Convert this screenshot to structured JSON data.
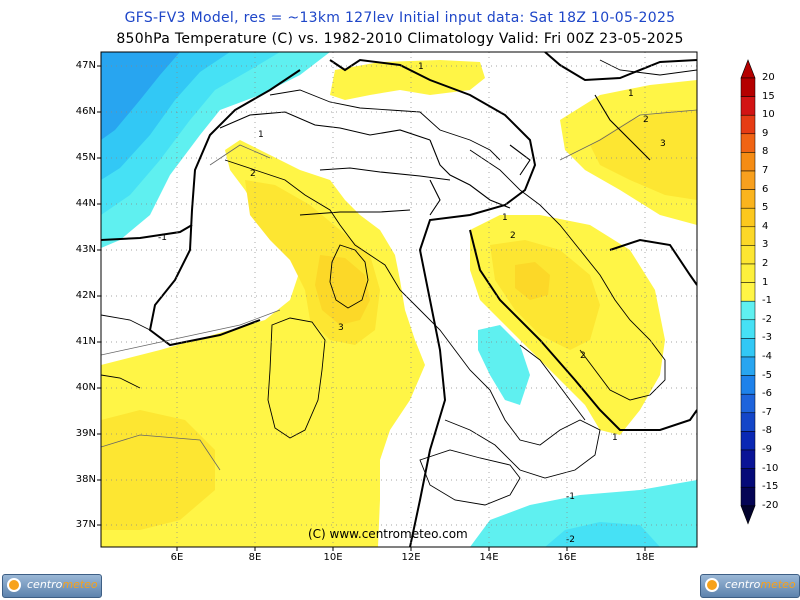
{
  "header": {
    "line1": "GFS-FV3 Model, res = ~13km 127lev   Initial input data: Sat 18Z 10-05-2025",
    "line2": "850hPa Temperature (C) vs. 1982-2010 Climatology  Valid: Fri 00Z 23-05-2025"
  },
  "map": {
    "lat_labels": [
      "47N",
      "46N",
      "45N",
      "44N",
      "43N",
      "42N",
      "41N",
      "40N",
      "39N",
      "38N",
      "37N"
    ],
    "lon_labels": [
      "6E",
      "8E",
      "10E",
      "12E",
      "14E",
      "16E",
      "18E"
    ],
    "contour_labels": [
      "-1",
      "1",
      "2",
      "3",
      "1",
      "2",
      "1",
      "3",
      "1",
      "2",
      "2",
      "1",
      "-1",
      "-2"
    ],
    "copyright": "(C) www.centrometeo.com"
  },
  "scale": {
    "labels": [
      "20",
      "15",
      "10",
      "9",
      "8",
      "7",
      "6",
      "5",
      "4",
      "3",
      "2",
      "1",
      "-1",
      "-2",
      "-3",
      "-4",
      "-5",
      "-6",
      "-7",
      "-8",
      "-9",
      "-10",
      "-15",
      "-20"
    ],
    "colors": [
      "#b40000",
      "#d21414",
      "#e63c14",
      "#f06414",
      "#f58c14",
      "#f8a01e",
      "#fab41e",
      "#fcc81e",
      "#fcd828",
      "#fde632",
      "#fdf03c",
      "#fff546",
      "#5ff0f0",
      "#46e1f5",
      "#32c8f5",
      "#28a5f0",
      "#1e82eb",
      "#1e64dc",
      "#1446c8",
      "#0a28b4",
      "#0a1496",
      "#050a78",
      "#050555",
      "#03032d"
    ]
  },
  "logos": {
    "left": {
      "prefix": "centro",
      "suffix": "meteo"
    },
    "right": {
      "prefix": "centro",
      "suffix": "meteo"
    }
  }
}
